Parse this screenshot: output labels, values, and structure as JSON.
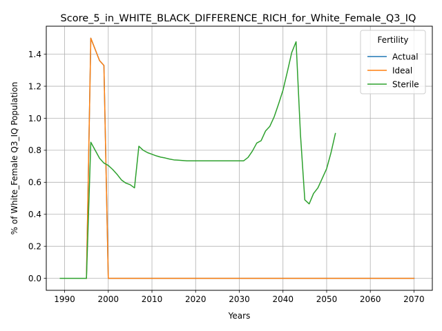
{
  "chart_data": {
    "type": "line",
    "title": "Score_5_in_WHITE_BLACK_DIFFERENCE_RICH_for_White_Female_Q3_IQ",
    "xlabel": "Years",
    "ylabel": "% of White_Female Q3_IQ Population",
    "xlim": [
      1985.8,
      2074.2
    ],
    "ylim": [
      -0.075,
      1.575
    ],
    "xticks": [
      1990,
      2000,
      2010,
      2020,
      2030,
      2040,
      2050,
      2060,
      2070
    ],
    "yticks": [
      0.0,
      0.2,
      0.4,
      0.6,
      0.8,
      1.0,
      1.2,
      1.4
    ],
    "grid": true,
    "legend": {
      "title": "Fertility",
      "position": "top-right"
    },
    "series": [
      {
        "name": "Actual",
        "color": "#1f77b4",
        "x": [
          1995,
          1996,
          1997,
          1998,
          1999,
          2000,
          2001,
          2010,
          2020,
          2030,
          2040,
          2050,
          2060,
          2070
        ],
        "y": [
          0.0,
          1.5,
          1.43,
          1.36,
          1.33,
          0.0,
          0.0,
          0.0,
          0.0,
          0.0,
          0.0,
          0.0,
          0.0,
          0.0
        ]
      },
      {
        "name": "Ideal",
        "color": "#ff7f0e",
        "x": [
          1995,
          1996,
          1997,
          1998,
          1999,
          2000,
          2001,
          2010,
          2020,
          2030,
          2040,
          2050,
          2060,
          2070
        ],
        "y": [
          0.0,
          1.5,
          1.43,
          1.36,
          1.33,
          0.0,
          0.0,
          0.0,
          0.0,
          0.0,
          0.0,
          0.0,
          0.0,
          0.0
        ]
      },
      {
        "name": "Sterile",
        "color": "#2ca02c",
        "x": [
          1989,
          1990,
          1991,
          1992,
          1993,
          1994,
          1995,
          1996,
          1997,
          1998,
          1999,
          2000,
          2001,
          2002,
          2003,
          2004,
          2005,
          2006,
          2007,
          2008,
          2009,
          2010,
          2011,
          2012,
          2013,
          2014,
          2015,
          2016,
          2017,
          2018,
          2019,
          2020,
          2021,
          2022,
          2023,
          2024,
          2025,
          2026,
          2027,
          2028,
          2029,
          2030,
          2031,
          2032,
          2033,
          2034,
          2035,
          2036,
          2037,
          2038,
          2039,
          2040,
          2041,
          2042,
          2043,
          2044,
          2045,
          2046,
          2047,
          2048,
          2049,
          2050,
          2051,
          2052
        ],
        "y": [
          0.0,
          0.0,
          0.0,
          0.0,
          0.0,
          0.0,
          0.0,
          0.85,
          0.8,
          0.75,
          0.72,
          0.705,
          0.68,
          0.65,
          0.615,
          0.595,
          0.585,
          0.565,
          0.825,
          0.8,
          0.785,
          0.775,
          0.765,
          0.757,
          0.752,
          0.745,
          0.74,
          0.738,
          0.736,
          0.734,
          0.734,
          0.734,
          0.734,
          0.734,
          0.734,
          0.734,
          0.734,
          0.734,
          0.734,
          0.734,
          0.734,
          0.734,
          0.734,
          0.755,
          0.795,
          0.845,
          0.86,
          0.92,
          0.95,
          1.01,
          1.09,
          1.175,
          1.29,
          1.41,
          1.478,
          0.9,
          0.49,
          0.465,
          0.53,
          0.565,
          0.625,
          0.685,
          0.785,
          0.905
        ]
      }
    ]
  }
}
